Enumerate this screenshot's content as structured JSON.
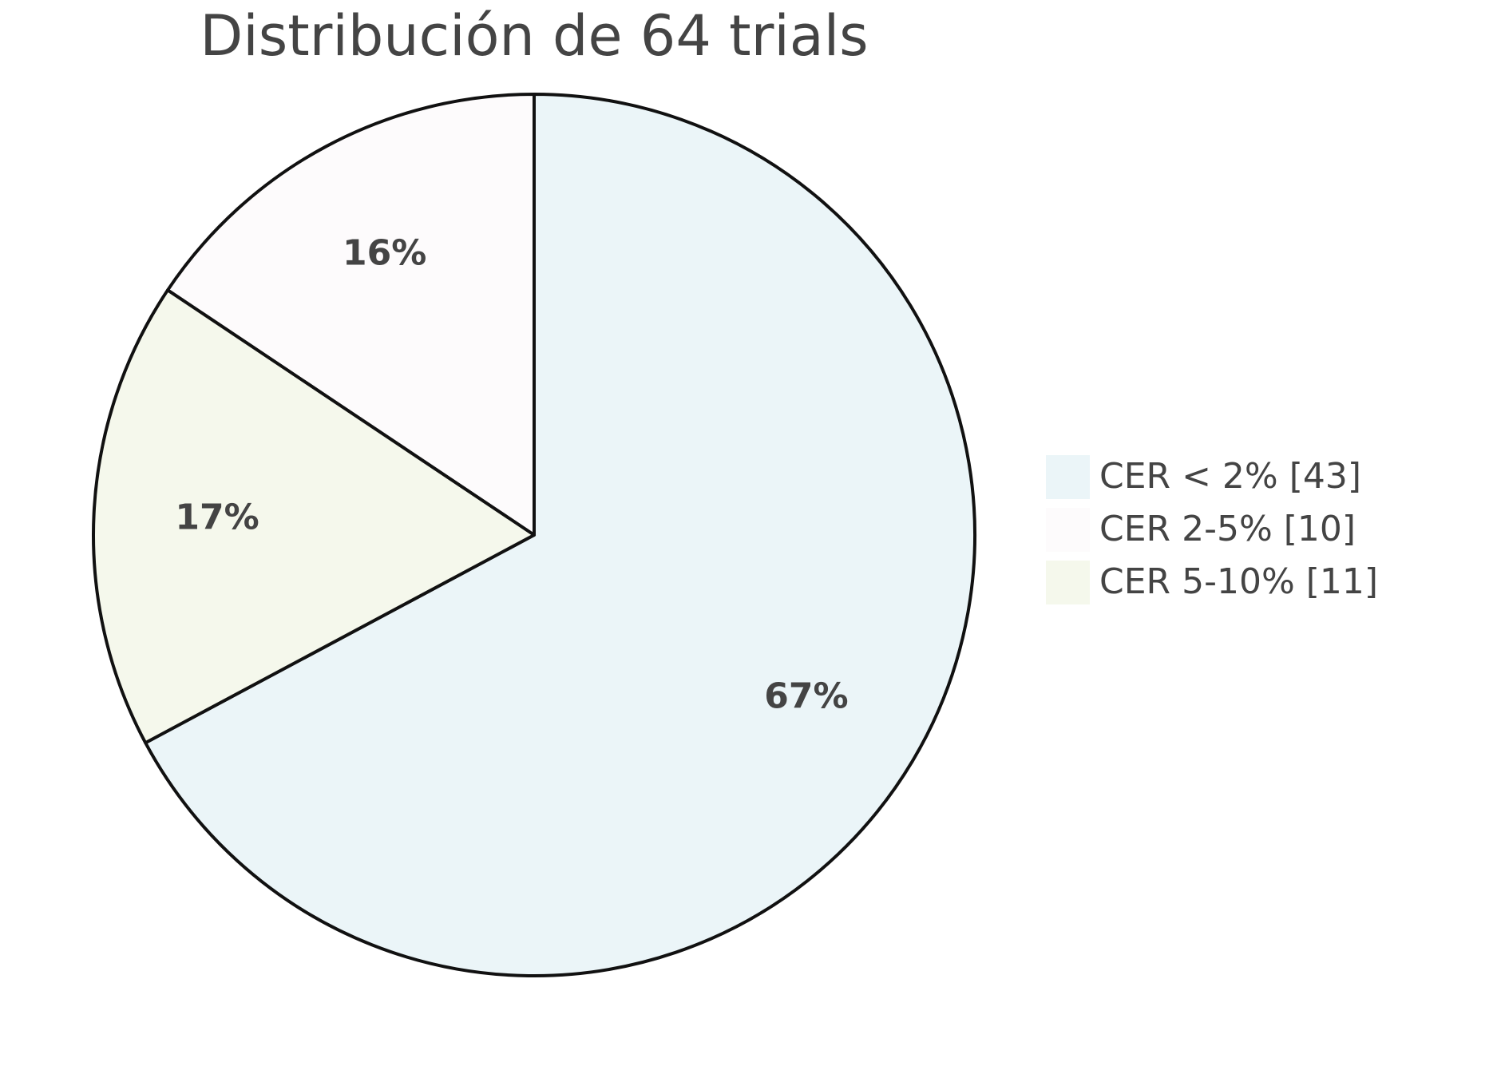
{
  "chart_data": {
    "type": "pie",
    "title": "Distribución de 64 trials",
    "categories": [
      "CER < 2% [43]",
      "CER 2-5% [10]",
      "CER 5-10% [11]"
    ],
    "values": [
      67.1875,
      15.625,
      17.1875
    ],
    "value_labels": [
      "67%",
      "16%",
      "17%"
    ],
    "colors": [
      "#ebf5f8",
      "#fdfbfc",
      "#f5f8ec"
    ],
    "direction": "counterclockwise",
    "legend": "right"
  }
}
